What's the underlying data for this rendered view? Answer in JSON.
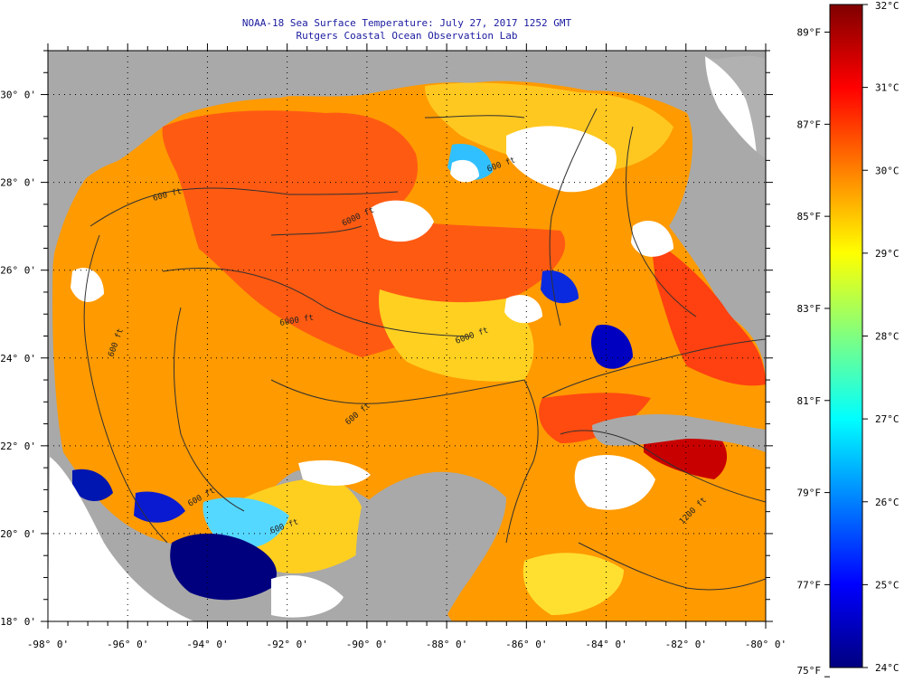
{
  "header": {
    "title": "NOAA-18 Sea Surface Temperature:  July 27, 2017 1252 GMT",
    "subtitle": "Rutgers Coastal Ocean Observation Lab"
  },
  "map": {
    "lon_range": [
      -98,
      -80
    ],
    "lat_range": [
      18,
      31
    ],
    "lon_labels": [
      "-98° 0'",
      "-96° 0'",
      "-94° 0'",
      "-92° 0'",
      "-90° 0'",
      "-88° 0'",
      "-86° 0'",
      "-84° 0'",
      "-82° 0'",
      "-80° 0'"
    ],
    "lat_labels": [
      "18° 0'",
      "20° 0'",
      "22° 0'",
      "24° 0'",
      "26° 0'",
      "28° 0'",
      "30° 0'"
    ],
    "contour_labels": [
      "600 ft",
      "6000 ft",
      "6000 ft",
      "6000 ft",
      "600 ft",
      "600 ft",
      "600 ft",
      "600 ft",
      "600 ft",
      "1200 ft"
    ],
    "colors": {
      "land": "#a9a9a9",
      "cloud": "#ffffff",
      "contour": "#303030",
      "grid": "#000000"
    }
  },
  "colorbar": {
    "celsius": [
      "32°C",
      "31°C",
      "30°C",
      "29°C",
      "28°C",
      "27°C",
      "26°C",
      "25°C",
      "24°C"
    ],
    "fahrenheit": [
      "89°F",
      "87°F",
      "85°F",
      "83°F",
      "81°F",
      "79°F",
      "77°F",
      "75°F"
    ],
    "celsius_range": [
      24,
      32
    ],
    "stops": [
      "#00007f",
      "#0000ff",
      "#0080ff",
      "#00ffff",
      "#80ff80",
      "#ffff00",
      "#ff8000",
      "#ff0000",
      "#7f0000"
    ]
  }
}
